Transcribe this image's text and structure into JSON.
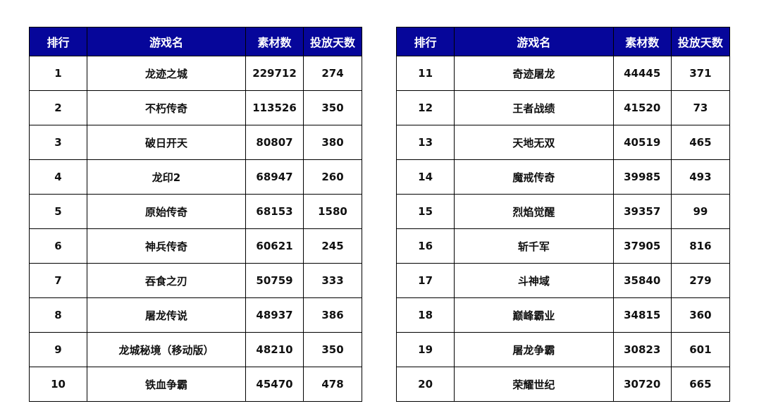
{
  "headers": [
    "排行",
    "游戏名",
    "素材数",
    "投放天数"
  ],
  "colors": {
    "header_bg": "#06069a",
    "header_text": "#ffffff"
  },
  "left_rows": [
    [
      "1",
      "龙迹之城",
      "229712",
      "274"
    ],
    [
      "2",
      "不朽传奇",
      "113526",
      "350"
    ],
    [
      "3",
      "破日开天",
      "80807",
      "380"
    ],
    [
      "4",
      "龙印2",
      "68947",
      "260"
    ],
    [
      "5",
      "原始传奇",
      "68153",
      "1580"
    ],
    [
      "6",
      "神兵传奇",
      "60621",
      "245"
    ],
    [
      "7",
      "吞食之刃",
      "50759",
      "333"
    ],
    [
      "8",
      "屠龙传说",
      "48937",
      "386"
    ],
    [
      "9",
      "龙城秘境（移动版）",
      "48210",
      "350"
    ],
    [
      "10",
      "铁血争霸",
      "45470",
      "478"
    ]
  ],
  "right_rows": [
    [
      "11",
      "奇迹屠龙",
      "44445",
      "371"
    ],
    [
      "12",
      "王者战绩",
      "41520",
      "73"
    ],
    [
      "13",
      "天地无双",
      "40519",
      "465"
    ],
    [
      "14",
      "魔戒传奇",
      "39985",
      "493"
    ],
    [
      "15",
      "烈焰觉醒",
      "39357",
      "99"
    ],
    [
      "16",
      "斩千军",
      "37905",
      "816"
    ],
    [
      "17",
      "斗神域",
      "35840",
      "279"
    ],
    [
      "18",
      "巅峰霸业",
      "34815",
      "360"
    ],
    [
      "19",
      "屠龙争霸",
      "30823",
      "601"
    ],
    [
      "20",
      "荣耀世纪",
      "30720",
      "665"
    ]
  ]
}
